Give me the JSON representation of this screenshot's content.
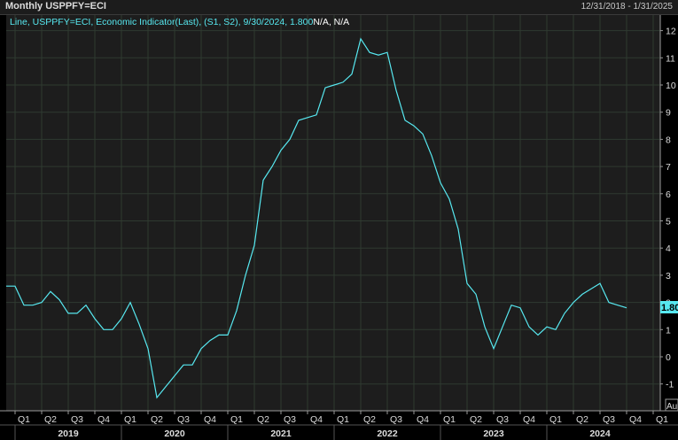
{
  "header": {
    "title": "Monthly USPPFY=ECI",
    "date_range": "12/31/2018 - 1/31/2025"
  },
  "legend": {
    "prefix": "Line, USPPFY=ECI, Economic Indicator(Last), (S1, S2), 9/30/2024, 1.800",
    "suffix": "N/A, N/A"
  },
  "last_value_label": "1.80",
  "corner_label": "Au",
  "colors": {
    "line": "#57e8f0",
    "plot_bg": "#1d1d1d",
    "grid": "#2f3a30",
    "axis_bg": "#000000",
    "badge": "#57e8f0"
  },
  "chart_data": {
    "type": "line",
    "title": "Monthly USPPFY=ECI",
    "ylim": [
      -1.5,
      12.2
    ],
    "y_ticks": [
      -1,
      0,
      1,
      2,
      3,
      4,
      5,
      6,
      7,
      8,
      9,
      10,
      11,
      12
    ],
    "x_quarter_ticks": [
      "Q1",
      "Q2",
      "Q3",
      "Q4",
      "Q1",
      "Q2",
      "Q3",
      "Q4",
      "Q1",
      "Q2",
      "Q3",
      "Q4",
      "Q1",
      "Q2",
      "Q3",
      "Q4",
      "Q1",
      "Q2",
      "Q3",
      "Q4",
      "Q1",
      "Q2",
      "Q3",
      "Q4",
      "Q1"
    ],
    "x_years": [
      "2019",
      "2020",
      "2021",
      "2022",
      "2023",
      "2024"
    ],
    "series": [
      {
        "x_start": "2018-12",
        "values": [
          2.6,
          2.6,
          1.9,
          1.9,
          2.0,
          2.4,
          2.1,
          1.6,
          1.6,
          1.9,
          1.4,
          1.0,
          1.0,
          1.4,
          2.0,
          1.2,
          0.3,
          -1.5,
          -1.1,
          -0.7,
          -0.3,
          -0.3,
          0.3,
          0.6,
          0.8,
          0.8,
          1.7,
          3.0,
          4.1,
          6.5,
          7.0,
          7.6,
          8.0,
          8.7,
          8.8,
          8.9,
          9.9,
          10.0,
          10.1,
          10.4,
          11.7,
          11.2,
          11.1,
          11.2,
          9.8,
          8.7,
          8.5,
          8.2,
          7.4,
          6.4,
          5.8,
          4.7,
          2.7,
          2.3,
          1.1,
          0.3,
          1.1,
          1.9,
          1.8,
          1.1,
          0.8,
          1.1,
          1.0,
          1.6,
          2.0,
          2.3,
          2.5,
          2.7,
          2.0,
          1.9,
          1.8
        ]
      }
    ]
  }
}
